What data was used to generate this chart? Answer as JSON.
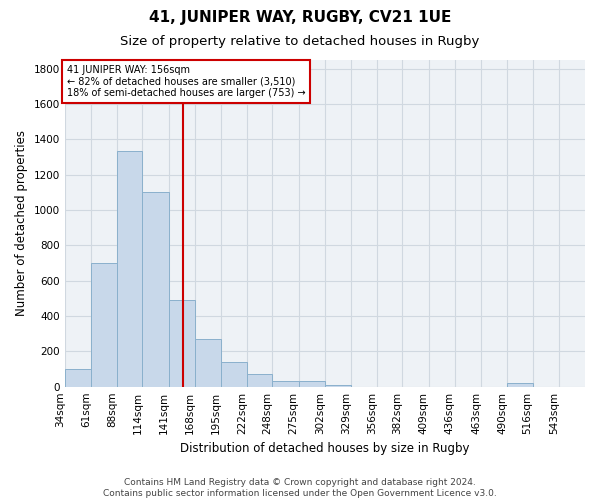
{
  "title": "41, JUNIPER WAY, RUGBY, CV21 1UE",
  "subtitle": "Size of property relative to detached houses in Rugby",
  "xlabel": "Distribution of detached houses by size in Rugby",
  "ylabel": "Number of detached properties",
  "bar_color": "#c8d8ea",
  "bar_edge_color": "#8ab0cc",
  "grid_color": "#d0d8e0",
  "bg_color": "#eef2f6",
  "red_line_x": 156,
  "annotation_line1": "41 JUNIPER WAY: 156sqm",
  "annotation_line2": "← 82% of detached houses are smaller (3,510)",
  "annotation_line3": "18% of semi-detached houses are larger (753) →",
  "annotation_box_color": "#ffffff",
  "annotation_edge_color": "#cc0000",
  "bin_edges": [
    34,
    61,
    88,
    114,
    141,
    168,
    195,
    222,
    248,
    275,
    302,
    329,
    356,
    382,
    409,
    436,
    463,
    490,
    516,
    543,
    570
  ],
  "bar_heights": [
    100,
    700,
    1335,
    1100,
    490,
    270,
    140,
    70,
    35,
    35,
    10,
    0,
    0,
    0,
    0,
    0,
    0,
    20,
    0,
    0
  ],
  "ylim": [
    0,
    1850
  ],
  "yticks": [
    0,
    200,
    400,
    600,
    800,
    1000,
    1200,
    1400,
    1600,
    1800
  ],
  "footer_text": "Contains HM Land Registry data © Crown copyright and database right 2024.\nContains public sector information licensed under the Open Government Licence v3.0.",
  "title_fontsize": 11,
  "subtitle_fontsize": 9.5,
  "tick_fontsize": 7.5,
  "label_fontsize": 8.5,
  "footer_fontsize": 6.5
}
